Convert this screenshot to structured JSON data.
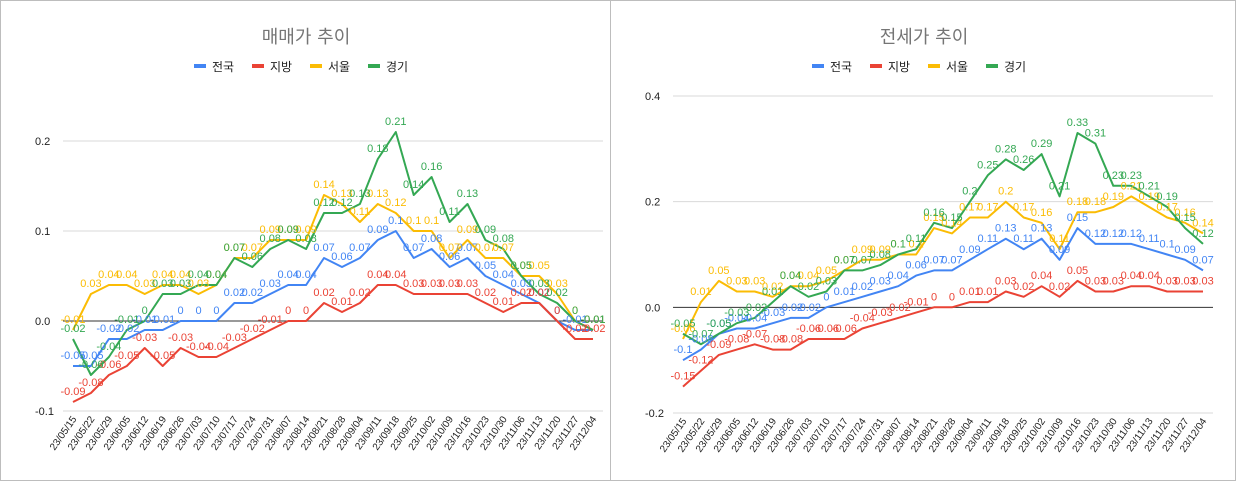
{
  "chart_data": [
    {
      "type": "line",
      "title": "매매가 추이",
      "ylim": [
        -0.1,
        0.2
      ],
      "yticks": [
        -0.1,
        0.0,
        0.1,
        0.2
      ],
      "categories": [
        "23/05/15",
        "23/05/22",
        "23/05/29",
        "23/06/05",
        "23/06/12",
        "23/06/19",
        "23/06/26",
        "23/07/03",
        "23/07/10",
        "23/07/17",
        "23/07/24",
        "23/07/31",
        "23/08/07",
        "23/08/14",
        "23/08/21",
        "23/08/28",
        "23/09/04",
        "23/09/11",
        "23/09/18",
        "23/09/25",
        "23/10/02",
        "23/10/09",
        "23/10/16",
        "23/10/23",
        "23/10/30",
        "23/11/06",
        "23/11/13",
        "23/11/20",
        "23/11/27",
        "23/12/04"
      ],
      "legend_position": "top",
      "series": [
        {
          "name": "전국",
          "color": "#4285f4",
          "values": [
            -0.05,
            -0.05,
            -0.02,
            -0.02,
            -0.01,
            -0.01,
            0,
            0,
            0,
            0.02,
            0.02,
            0.03,
            0.04,
            0.04,
            0.07,
            0.06,
            0.07,
            0.09,
            0.1,
            0.07,
            0.08,
            0.06,
            0.07,
            0.05,
            0.04,
            0.03,
            0.02,
            0,
            -0.01,
            -0.01
          ]
        },
        {
          "name": "지방",
          "color": "#ea4335",
          "values": [
            -0.09,
            -0.08,
            -0.06,
            -0.05,
            -0.03,
            -0.05,
            -0.03,
            -0.04,
            -0.04,
            -0.03,
            -0.02,
            -0.01,
            0,
            0,
            0.02,
            0.01,
            0.02,
            0.04,
            0.04,
            0.03,
            0.03,
            0.03,
            0.03,
            0.02,
            0.01,
            0.02,
            0.02,
            0,
            -0.02,
            -0.02
          ]
        },
        {
          "name": "서울",
          "color": "#fbbc04",
          "values": [
            -0.01,
            0.03,
            0.04,
            0.04,
            0.03,
            0.04,
            0.04,
            0.03,
            0.04,
            0.07,
            0.07,
            0.09,
            0.09,
            0.09,
            0.14,
            0.13,
            0.11,
            0.13,
            0.12,
            0.1,
            0.1,
            0.07,
            0.09,
            0.07,
            0.07,
            0.05,
            0.05,
            0.03,
            0,
            -0.01
          ]
        },
        {
          "name": "경기",
          "color": "#34a853",
          "values": [
            -0.02,
            -0.06,
            -0.04,
            -0.01,
            0,
            0.03,
            0.03,
            0.04,
            0.04,
            0.07,
            0.06,
            0.08,
            0.09,
            0.08,
            0.12,
            0.12,
            0.13,
            0.18,
            0.21,
            0.14,
            0.16,
            0.11,
            0.13,
            0.09,
            0.08,
            0.05,
            0.03,
            0.02,
            0,
            -0.01
          ]
        }
      ]
    },
    {
      "type": "line",
      "title": "전세가 추이",
      "ylim": [
        -0.2,
        0.4
      ],
      "yticks": [
        -0.2,
        0.0,
        0.2,
        0.4
      ],
      "categories": [
        "23/05/15",
        "23/05/22",
        "23/05/29",
        "23/06/05",
        "23/06/12",
        "23/06/19",
        "23/06/26",
        "23/07/03",
        "23/07/10",
        "23/07/17",
        "23/07/24",
        "23/07/31",
        "23/08/07",
        "23/08/14",
        "23/08/21",
        "23/08/28",
        "23/09/04",
        "23/09/11",
        "23/09/18",
        "23/09/25",
        "23/10/02",
        "23/10/09",
        "23/10/16",
        "23/10/23",
        "23/10/30",
        "23/11/06",
        "23/11/13",
        "23/11/20",
        "23/11/27",
        "23/12/04"
      ],
      "legend_position": "top",
      "series": [
        {
          "name": "전국",
          "color": "#4285f4",
          "values": [
            -0.1,
            -0.08,
            -0.05,
            -0.04,
            -0.04,
            -0.03,
            -0.02,
            -0.02,
            0,
            0.01,
            0.02,
            0.03,
            0.04,
            0.06,
            0.07,
            0.07,
            0.09,
            0.11,
            0.13,
            0.11,
            0.13,
            0.09,
            0.15,
            0.12,
            0.12,
            0.12,
            0.11,
            0.1,
            0.09,
            0.07
          ]
        },
        {
          "name": "지방",
          "color": "#ea4335",
          "values": [
            -0.15,
            -0.12,
            -0.09,
            -0.08,
            -0.07,
            -0.08,
            -0.08,
            -0.06,
            -0.06,
            -0.06,
            -0.04,
            -0.03,
            -0.02,
            -0.01,
            0,
            0,
            0.01,
            0.01,
            0.03,
            0.02,
            0.04,
            0.02,
            0.05,
            0.03,
            0.03,
            0.04,
            0.04,
            0.03,
            0.03,
            0.03
          ]
        },
        {
          "name": "서울",
          "color": "#fbbc04",
          "values": [
            -0.06,
            0.01,
            0.05,
            0.03,
            0.03,
            0.02,
            0.04,
            0.04,
            0.05,
            0.07,
            0.09,
            0.09,
            0.1,
            0.1,
            0.15,
            0.14,
            0.17,
            0.17,
            0.2,
            0.17,
            0.16,
            0.11,
            0.18,
            0.18,
            0.19,
            0.21,
            0.19,
            0.17,
            0.16,
            0.14
          ]
        },
        {
          "name": "경기",
          "color": "#34a853",
          "values": [
            -0.05,
            -0.07,
            -0.05,
            -0.03,
            -0.02,
            0.01,
            0.04,
            0.02,
            0.03,
            0.07,
            0.07,
            0.08,
            0.1,
            0.11,
            0.16,
            0.15,
            0.2,
            0.25,
            0.28,
            0.26,
            0.29,
            0.21,
            0.33,
            0.31,
            0.23,
            0.23,
            0.21,
            0.19,
            0.15,
            0.12
          ]
        }
      ]
    }
  ]
}
